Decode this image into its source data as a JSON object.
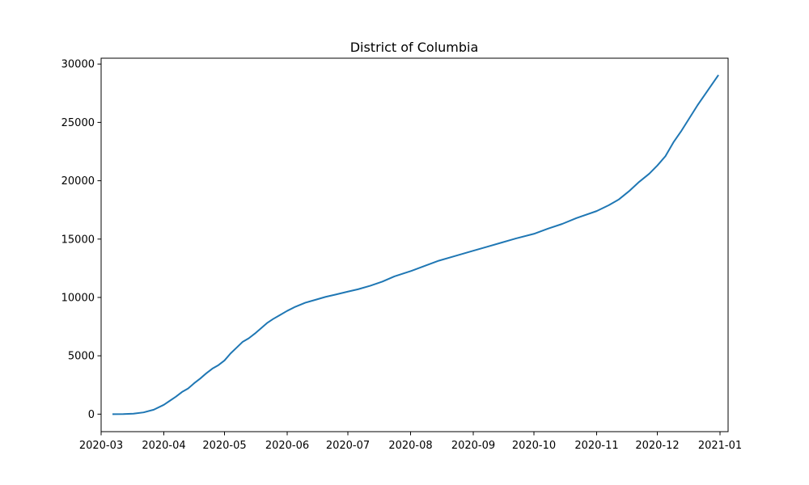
{
  "chart_data": {
    "type": "line",
    "title": "District of Columbia",
    "xlabel": "",
    "ylabel": "",
    "x_axis_type": "date",
    "xlim": [
      "2020-03-01",
      "2021-01-05"
    ],
    "ylim": [
      -1500,
      30500
    ],
    "grid": false,
    "legend": "none",
    "x_ticks": [
      "2020-03",
      "2020-04",
      "2020-05",
      "2020-06",
      "2020-07",
      "2020-08",
      "2020-09",
      "2020-10",
      "2020-11",
      "2020-12",
      "2021-01"
    ],
    "y_ticks": [
      0,
      5000,
      10000,
      15000,
      20000,
      25000,
      30000
    ],
    "line_color": "#1f77b4",
    "series": [
      {
        "x": [
          "2020-03-07",
          "2020-03-12",
          "2020-03-17",
          "2020-03-22",
          "2020-03-27",
          "2020-04-01",
          "2020-04-04",
          "2020-04-07",
          "2020-04-10",
          "2020-04-13",
          "2020-04-16",
          "2020-04-19",
          "2020-04-22",
          "2020-04-25",
          "2020-04-28",
          "2020-05-01",
          "2020-05-04",
          "2020-05-07",
          "2020-05-10",
          "2020-05-13",
          "2020-05-16",
          "2020-05-19",
          "2020-05-22",
          "2020-05-25",
          "2020-05-28",
          "2020-06-01",
          "2020-06-05",
          "2020-06-10",
          "2020-06-15",
          "2020-06-20",
          "2020-06-25",
          "2020-07-01",
          "2020-07-06",
          "2020-07-12",
          "2020-07-18",
          "2020-07-24",
          "2020-08-01",
          "2020-08-08",
          "2020-08-15",
          "2020-08-22",
          "2020-09-01",
          "2020-09-08",
          "2020-09-15",
          "2020-09-22",
          "2020-10-01",
          "2020-10-08",
          "2020-10-15",
          "2020-10-22",
          "2020-11-01",
          "2020-11-07",
          "2020-11-12",
          "2020-11-17",
          "2020-11-22",
          "2020-11-27",
          "2020-12-01",
          "2020-12-05",
          "2020-12-09",
          "2020-12-13",
          "2020-12-17",
          "2020-12-21",
          "2020-12-25",
          "2020-12-27",
          "2020-12-31"
        ],
        "values": [
          0,
          10,
          40,
          150,
          380,
          800,
          1150,
          1500,
          1900,
          2200,
          2650,
          3050,
          3500,
          3900,
          4200,
          4600,
          5200,
          5700,
          6200,
          6500,
          6900,
          7350,
          7800,
          8150,
          8450,
          8850,
          9200,
          9550,
          9800,
          10050,
          10250,
          10500,
          10700,
          11000,
          11350,
          11800,
          12250,
          12700,
          13150,
          13500,
          14000,
          14350,
          14700,
          15050,
          15450,
          15900,
          16300,
          16800,
          17400,
          17900,
          18400,
          19100,
          19900,
          20600,
          21300,
          22100,
          23300,
          24300,
          25400,
          26500,
          27500,
          28000,
          29000
        ]
      }
    ]
  }
}
